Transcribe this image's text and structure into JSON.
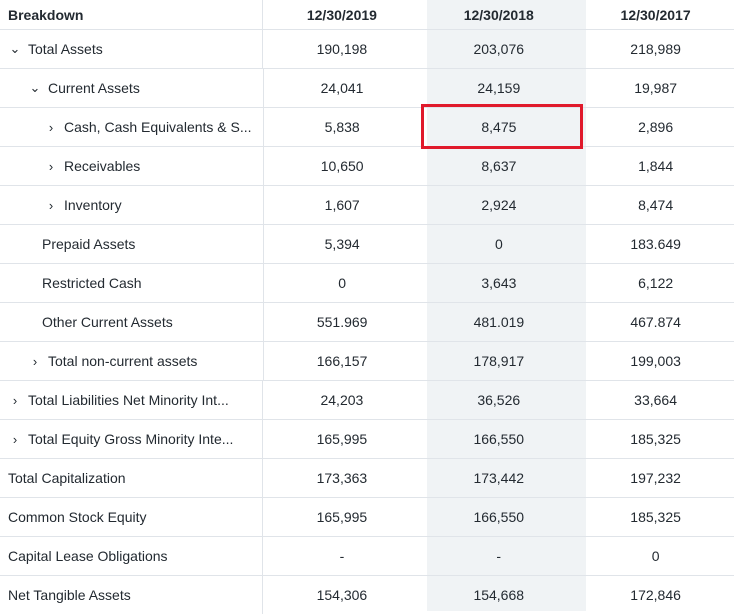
{
  "header": {
    "breakdown": "Breakdown",
    "col1": "12/30/2019",
    "col2": "12/30/2018",
    "col3": "12/30/2017"
  },
  "rows": [
    {
      "label": "Total Assets",
      "v1": "190,198",
      "v2": "203,076",
      "v3": "218,989"
    },
    {
      "label": "Current Assets",
      "v1": "24,041",
      "v2": "24,159",
      "v3": "19,987"
    },
    {
      "label": "Cash, Cash Equivalents & S...",
      "v1": "5,838",
      "v2": "8,475",
      "v3": "2,896"
    },
    {
      "label": "Receivables",
      "v1": "10,650",
      "v2": "8,637",
      "v3": "1,844"
    },
    {
      "label": "Inventory",
      "v1": "1,607",
      "v2": "2,924",
      "v3": "8,474"
    },
    {
      "label": "Prepaid Assets",
      "v1": "5,394",
      "v2": "0",
      "v3": "183.649"
    },
    {
      "label": "Restricted Cash",
      "v1": "0",
      "v2": "3,643",
      "v3": "6,122"
    },
    {
      "label": "Other Current Assets",
      "v1": "551.969",
      "v2": "481.019",
      "v3": "467.874"
    },
    {
      "label": "Total non-current assets",
      "v1": "166,157",
      "v2": "178,917",
      "v3": "199,003"
    },
    {
      "label": "Total Liabilities Net Minority Int...",
      "v1": "24,203",
      "v2": "36,526",
      "v3": "33,664"
    },
    {
      "label": "Total Equity Gross Minority Inte...",
      "v1": "165,995",
      "v2": "166,550",
      "v3": "185,325"
    },
    {
      "label": "Total Capitalization",
      "v1": "173,363",
      "v2": "173,442",
      "v3": "197,232"
    },
    {
      "label": "Common Stock Equity",
      "v1": "165,995",
      "v2": "166,550",
      "v3": "185,325"
    },
    {
      "label": "Capital Lease Obligations",
      "v1": "-",
      "v2": "-",
      "v3": "0"
    },
    {
      "label": "Net Tangible Assets",
      "v1": "154,306",
      "v2": "154,668",
      "v3": "172,846"
    }
  ],
  "icons": {
    "expanded": "chevron-down-icon",
    "collapsed": "chevron-right-icon"
  }
}
